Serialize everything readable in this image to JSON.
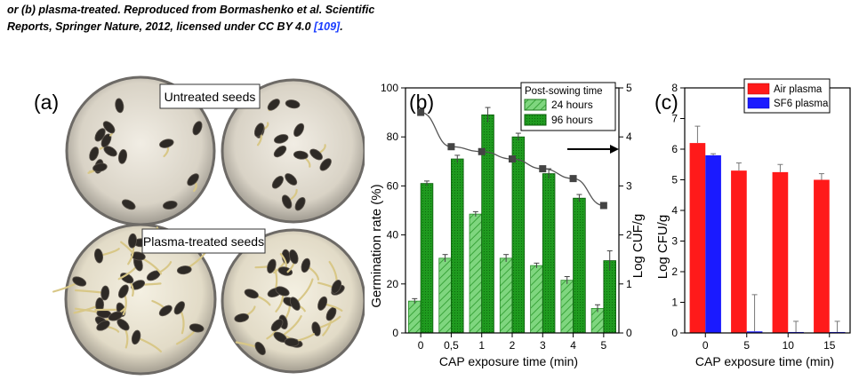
{
  "caption": {
    "line1": "or (b) plasma-treated. Reproduced from Bormashenko et al. Scientific",
    "line2_pre": "Reports, Springer Nature, 2012, licensed under CC BY 4.0 ",
    "line2_ref": "[109]",
    "line2_post": "."
  },
  "panel_a": {
    "letter": "(a)",
    "untreated_label": "Untreated seeds",
    "treated_label": "Plasma-treated seeds"
  },
  "colors": {
    "green_dark": "#1f9a1f",
    "green_hatch": "#7fd67f",
    "air": "#ff1a1a",
    "sf6": "#1a1aff",
    "marker": "#444444"
  },
  "chart_data": [
    {
      "panel": "(b)",
      "type": "bar",
      "title": "",
      "xlabel": "CAP exposure time (min)",
      "ylabel": "Germination rate (%)",
      "y2label": "Log CUF/g",
      "categories": [
        "0",
        "0,5",
        "1",
        "2",
        "3",
        "4",
        "5"
      ],
      "ylim": [
        0,
        100
      ],
      "y2lim": [
        0,
        5
      ],
      "yticks": [
        "0",
        "20",
        "40",
        "60",
        "80",
        "100"
      ],
      "y2ticks": [
        "0",
        "1",
        "2",
        "3",
        "4",
        "5"
      ],
      "legend_title": "Post-sowing time",
      "legend_position": "top-right",
      "series": [
        {
          "name": "24 hours",
          "values": [
            13,
            30.5,
            48.5,
            30.5,
            27.5,
            21.5,
            10
          ],
          "errors": [
            1,
            1.5,
            1,
            1.5,
            1,
            1.5,
            1.5
          ]
        },
        {
          "name": "96 hours",
          "values": [
            61,
            71,
            89,
            80,
            65,
            55,
            29.5
          ],
          "errors": [
            1,
            1.5,
            3,
            1.5,
            2,
            1.5,
            4
          ]
        }
      ],
      "secondary_series": {
        "values": [
          4.5,
          3.8,
          3.7,
          3.55,
          3.35,
          3.15,
          2.6
        ]
      }
    },
    {
      "panel": "(c)",
      "type": "bar",
      "title": "",
      "xlabel": "CAP exposure time (min)",
      "ylabel": "Log CFU/g",
      "categories": [
        "0",
        "5",
        "10",
        "15"
      ],
      "ylim": [
        0,
        8
      ],
      "yticks": [
        "0",
        "1",
        "2",
        "3",
        "4",
        "5",
        "6",
        "7",
        "8"
      ],
      "legend_position": "top-right",
      "series": [
        {
          "name": "Air plasma",
          "values": [
            6.2,
            5.3,
            5.25,
            5.0
          ],
          "errors": [
            0.55,
            0.25,
            0.25,
            0.2
          ]
        },
        {
          "name": "SF6 plasma",
          "values": [
            5.8,
            0.05,
            0.03,
            0.03
          ],
          "errors": [
            0.05,
            1.2,
            0.35,
            0.35
          ]
        }
      ]
    }
  ]
}
